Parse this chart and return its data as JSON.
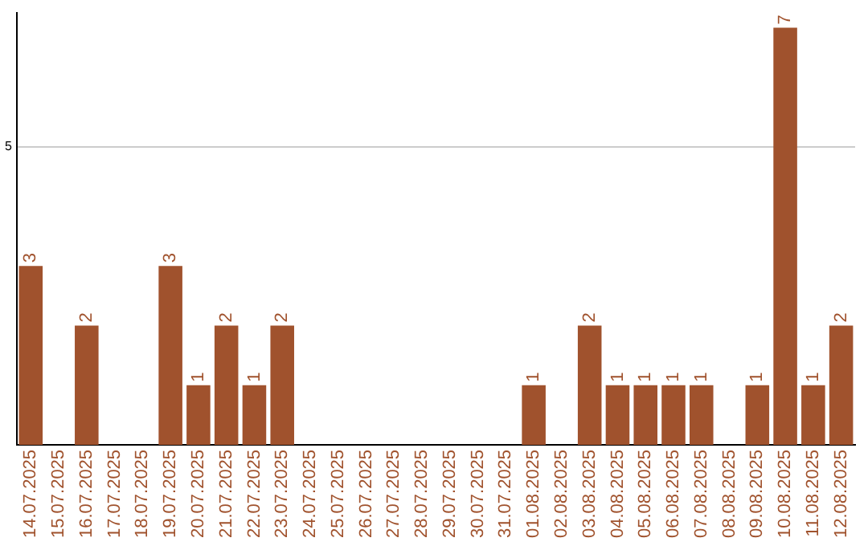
{
  "chart_data": {
    "type": "bar",
    "categories": [
      "14.07.2025",
      "15.07.2025",
      "16.07.2025",
      "17.07.2025",
      "18.07.2025",
      "19.07.2025",
      "20.07.2025",
      "21.07.2025",
      "22.07.2025",
      "23.07.2025",
      "24.07.2025",
      "25.07.2025",
      "26.07.2025",
      "27.07.2025",
      "28.07.2025",
      "29.07.2025",
      "30.07.2025",
      "31.07.2025",
      "01.08.2025",
      "02.08.2025",
      "03.08.2025",
      "04.08.2025",
      "05.08.2025",
      "06.08.2025",
      "07.08.2025",
      "08.08.2025",
      "09.08.2025",
      "10.08.2025",
      "11.08.2025",
      "12.08.2025"
    ],
    "values": [
      3,
      0,
      2,
      0,
      0,
      3,
      1,
      2,
      1,
      2,
      0,
      0,
      0,
      0,
      0,
      0,
      0,
      0,
      1,
      0,
      2,
      1,
      1,
      1,
      1,
      0,
      1,
      7,
      1,
      2
    ],
    "value_labels": [
      "3",
      null,
      "2",
      null,
      null,
      "3",
      "1",
      "2",
      "1",
      "2",
      null,
      null,
      null,
      null,
      null,
      null,
      null,
      null,
      "1",
      null,
      "2",
      "1",
      "1",
      "1",
      "1",
      null,
      "1",
      "7",
      "1",
      "2"
    ],
    "color": "#a0522d",
    "ylim": [
      0,
      7.25
    ],
    "yticks": [
      5
    ],
    "grid": "y",
    "legend": false
  }
}
